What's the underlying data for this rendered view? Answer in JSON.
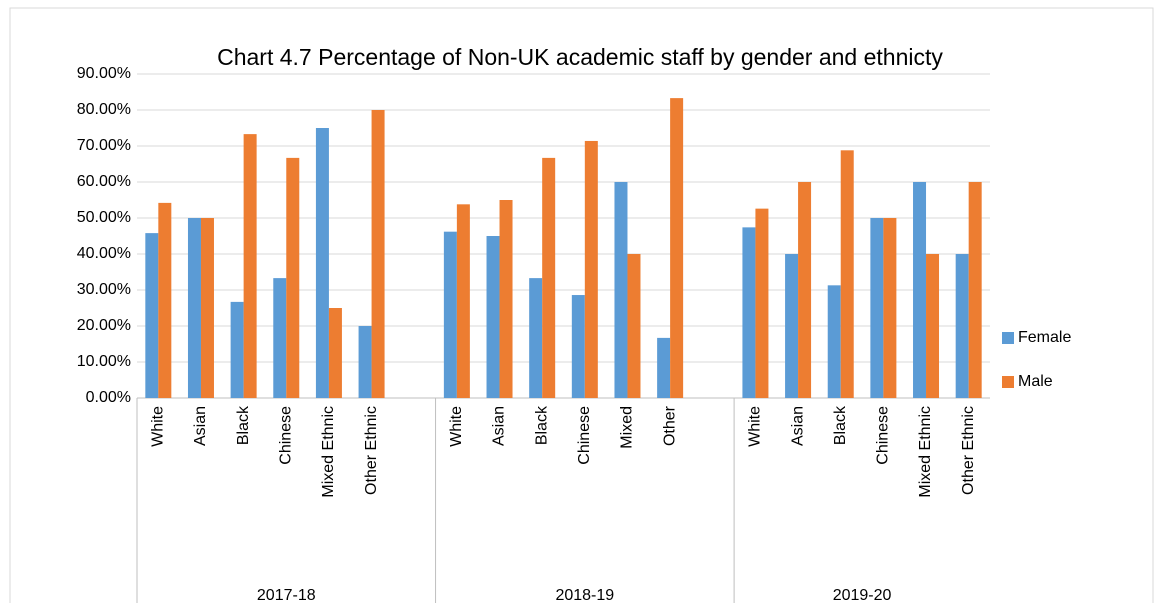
{
  "chart_data": {
    "type": "bar",
    "title": "Chart 4.7 Percentage of Non-UK academic staff by gender and ethnicty",
    "groups": [
      "2017-18",
      "2018-19",
      "2019-20"
    ],
    "categories": [
      "White",
      "Asian",
      "Black",
      "Chinese",
      "Mixed Ethnic",
      "Other Ethnic",
      null,
      "White",
      "Asian",
      "Black",
      "Chinese",
      "Mixed",
      "Other",
      null,
      "White",
      "Asian",
      "Black",
      "Chinese",
      "Mixed Ethnic",
      "Other Ethnic"
    ],
    "series": [
      {
        "name": "Female",
        "color": "#5b9bd5",
        "values": [
          45.8,
          50,
          26.7,
          33.3,
          75,
          20,
          null,
          46.2,
          45,
          33.3,
          28.6,
          60,
          16.7,
          null,
          47.4,
          40,
          31.3,
          50,
          60,
          40
        ]
      },
      {
        "name": "Male",
        "color": "#ed7d31",
        "values": [
          54.2,
          50,
          73.3,
          66.7,
          25,
          80,
          null,
          53.8,
          55,
          66.7,
          71.4,
          40,
          83.3,
          null,
          52.6,
          60,
          68.8,
          50,
          40,
          60
        ]
      }
    ],
    "ylim": [
      0,
      90
    ],
    "yticks": [
      {
        "value": 0,
        "label": "0.00%"
      },
      {
        "value": 10,
        "label": "10.00%"
      },
      {
        "value": 20,
        "label": "20.00%"
      },
      {
        "value": 30,
        "label": "30.00%"
      },
      {
        "value": 40,
        "label": "40.00%"
      },
      {
        "value": 50,
        "label": "50.00%"
      },
      {
        "value": 60,
        "label": "60.00%"
      },
      {
        "value": 70,
        "label": "70.00%"
      },
      {
        "value": 80,
        "label": "80.00%"
      },
      {
        "value": 90,
        "label": "90.00%"
      }
    ],
    "grid": true,
    "legend": "right"
  }
}
